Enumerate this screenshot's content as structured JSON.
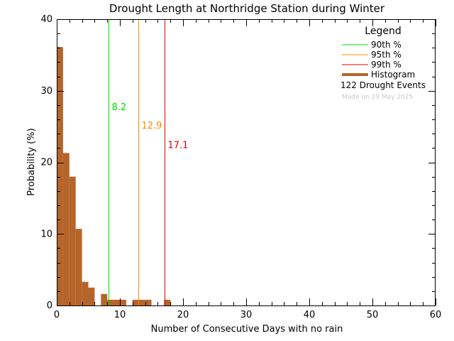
{
  "chart_data": {
    "type": "bar",
    "title": "Drought Length at Northridge Station during Winter",
    "xlabel": "Number of Consecutive Days with no rain",
    "ylabel": "Probability (%)",
    "xlim": [
      0,
      60
    ],
    "ylim": [
      0,
      40
    ],
    "x_ticks": [
      "0",
      "10",
      "20",
      "30",
      "40",
      "50",
      "60"
    ],
    "y_ticks": [
      "0",
      "10",
      "20",
      "30",
      "40"
    ],
    "bin_width": 1,
    "x": [
      1,
      2,
      3,
      4,
      5,
      6,
      8,
      9,
      10,
      11,
      13,
      14,
      15,
      18
    ],
    "values": [
      36.1,
      21.3,
      18.0,
      10.7,
      3.3,
      2.5,
      1.6,
      0.8,
      0.8,
      0.8,
      0.8,
      0.8,
      0.8,
      0.8
    ],
    "bar_color": "#b5652a",
    "percentiles": [
      {
        "name": "90th %",
        "value": 8.2,
        "label": "8.2",
        "color": "#00dd00",
        "label_y": 27.3
      },
      {
        "name": "95th %",
        "value": 12.9,
        "label": "12.9",
        "color": "#ff8800",
        "label_y": 24.7
      },
      {
        "name": "99th %",
        "value": 17.1,
        "label": "17.1",
        "color": "#dd0000",
        "label_y": 22.0
      }
    ],
    "legend": {
      "title": "Legend",
      "placement": "top-right",
      "entries": [
        "90th %",
        "95th %",
        "99th %",
        "Histogram"
      ],
      "events_text": "122 Drought Events",
      "made_text": "Made on 29 May 2025"
    },
    "grid": false
  }
}
